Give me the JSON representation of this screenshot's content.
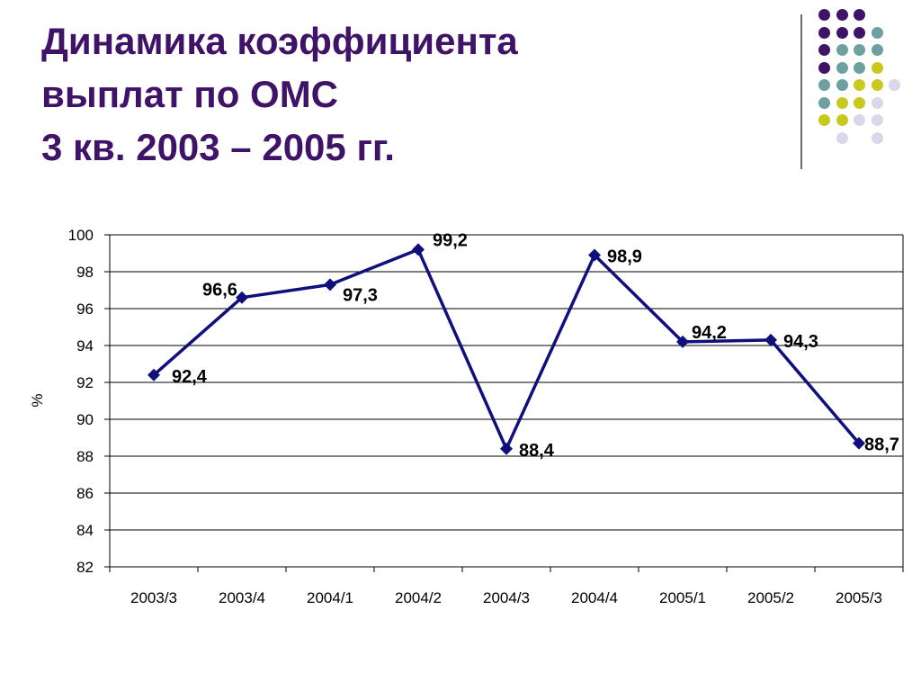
{
  "slide": {
    "title_lines": [
      "Динамика коэффициента",
      "выплат по ОМС",
      "3 кв. 2003 – 2005 гг."
    ],
    "title_color": "#3f1468"
  },
  "decoration": {
    "dot_colors": {
      "purple": "#3f1468",
      "teal": "#6fa0a0",
      "olive": "#c8c81e",
      "lavender": "#d8d8ea"
    },
    "dot_grid": [
      [
        "purple",
        "purple",
        "purple",
        null
      ],
      [
        "purple",
        "purple",
        "purple",
        "teal"
      ],
      [
        "purple",
        "teal",
        "teal",
        "teal"
      ],
      [
        "purple",
        "teal",
        "teal",
        "olive"
      ],
      [
        "teal",
        "teal",
        "olive",
        "olive",
        "lavender"
      ],
      [
        "teal",
        "olive",
        "olive",
        "lavender"
      ],
      [
        "olive",
        "olive",
        "lavender",
        "lavender"
      ],
      [
        null,
        "lavender",
        null,
        "lavender"
      ]
    ]
  },
  "chart_data": {
    "type": "line",
    "title": "",
    "xlabel": "",
    "ylabel": "%",
    "categories": [
      "2003/3",
      "2003/4",
      "2004/1",
      "2004/2",
      "2004/3",
      "2004/4",
      "2005/1",
      "2005/2",
      "2005/3"
    ],
    "series": [
      {
        "values": [
          92.4,
          96.6,
          97.3,
          99.2,
          88.4,
          98.9,
          94.2,
          94.3,
          88.7
        ],
        "data_labels": [
          "92,4",
          "96,6",
          "97,3",
          "99,2",
          "88,4",
          "98,9",
          "94,2",
          "94,3",
          "88,7"
        ],
        "color": "#0f0f7d",
        "marker": "diamond"
      }
    ],
    "ylim": [
      82,
      100
    ],
    "yticks": [
      82,
      84,
      86,
      88,
      90,
      92,
      94,
      96,
      98,
      100
    ],
    "grid": true,
    "legend": "none"
  }
}
